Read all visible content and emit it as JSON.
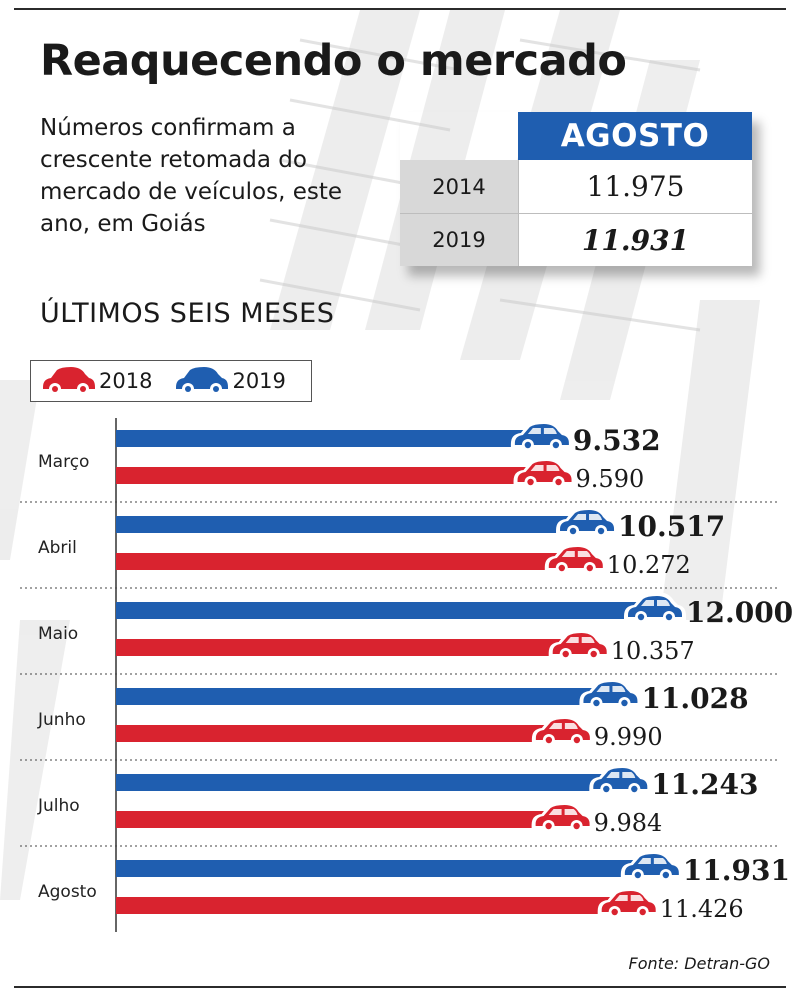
{
  "title": "Reaquecendo o mercado",
  "subtitle": "Números confirmam a crescente retomada do mercado de veículos, este ano, em Goiás",
  "kpi": {
    "header": "AGOSTO",
    "rows": [
      {
        "year": "2014",
        "value": "11.975",
        "emphasis": false
      },
      {
        "year": "2019",
        "value": "11.931",
        "emphasis": true
      }
    ]
  },
  "section_title": "ÚLTIMOS SEIS MESES",
  "legend": {
    "series_2018": "2018",
    "series_2019": "2019"
  },
  "colors": {
    "blue": "#1f5eb0",
    "red": "#d9232f"
  },
  "icons": [
    "car-icon"
  ],
  "source": "Fonte: Detran-GO",
  "chart_data": {
    "type": "bar",
    "orientation": "horizontal",
    "categories": [
      "Março",
      "Abril",
      "Maio",
      "Junho",
      "Julho",
      "Agosto"
    ],
    "series": [
      {
        "name": "2019",
        "color": "#1f5eb0",
        "values": [
          9532,
          10517,
          12000,
          11028,
          11243,
          11931
        ],
        "labels": [
          "9.532",
          "10.517",
          "12.000",
          "11.028",
          "11.243",
          "11.931"
        ]
      },
      {
        "name": "2018",
        "color": "#d9232f",
        "values": [
          9590,
          10272,
          10357,
          9990,
          9984,
          11426
        ],
        "labels": [
          "9.590",
          "10.272",
          "10.357",
          "9.990",
          "9.984",
          "11.426"
        ]
      }
    ],
    "xlim": [
      0,
      12000
    ],
    "legend": "top-left"
  }
}
